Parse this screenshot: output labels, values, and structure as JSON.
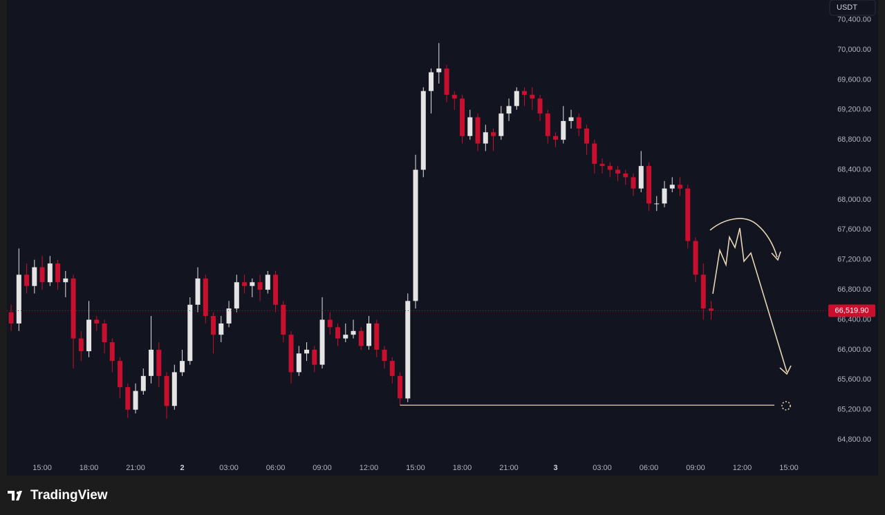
{
  "chart_data": {
    "type": "candlestick",
    "currency": "USDT",
    "brand": "TradingView",
    "up_color": "#e4e4e4",
    "down_color": "#c8102e",
    "x": [
      13,
      13.5,
      14,
      14.5,
      15,
      15.5,
      16,
      16.5,
      17,
      17.5,
      18,
      18.5,
      19,
      19.5,
      20,
      20.5,
      21,
      21.5,
      22,
      22.5,
      23,
      23.5,
      24,
      24.5,
      25,
      25.5,
      26,
      26.5,
      27,
      27.5,
      28,
      28.5,
      29,
      29.5,
      30,
      30.5,
      31,
      31.5,
      32,
      32.5,
      33,
      33.5,
      34,
      34.5,
      35,
      35.5,
      36,
      36.5,
      37,
      37.5,
      38,
      38.5,
      39,
      39.5,
      40,
      40.5,
      41,
      41.5,
      42,
      42.5,
      43,
      43.5,
      44,
      44.5,
      45,
      45.5,
      46,
      46.5,
      47,
      47.5,
      48,
      48.5,
      49,
      49.5,
      50,
      50.5,
      51,
      51.5,
      52,
      52.5,
      53,
      53.5,
      54,
      54.5,
      55,
      55.5,
      56,
      56.5,
      57,
      57.5,
      58
    ],
    "open": [
      66500,
      66350,
      67000,
      66850,
      67100,
      66900,
      67150,
      66900,
      66950,
      66150,
      65980,
      66400,
      66350,
      66100,
      65850,
      65500,
      65200,
      65450,
      65650,
      66000,
      65650,
      65250,
      65700,
      65850,
      66600,
      66950,
      66450,
      66200,
      66350,
      66550,
      66900,
      66850,
      66900,
      66800,
      67000,
      66600,
      66200,
      65700,
      65950,
      66000,
      65800,
      66400,
      66300,
      66150,
      66200,
      66250,
      66050,
      66350,
      66000,
      65850,
      65650,
      65350,
      66650,
      68400,
      69450,
      69700,
      69750,
      69400,
      69350,
      68850,
      69100,
      68750,
      68900,
      68850,
      69150,
      69250,
      69450,
      69400,
      69350,
      69150,
      68850,
      68800,
      69050,
      69100,
      68950,
      68750,
      68480,
      68450,
      68400,
      68350,
      68300,
      68150,
      68450,
      67950,
      67950,
      68150,
      68200,
      68150,
      67450,
      67000,
      66550
    ],
    "high": [
      66600,
      67350,
      67150,
      67200,
      67250,
      67250,
      67200,
      67050,
      67000,
      66250,
      66650,
      66450,
      66400,
      66150,
      65900,
      65550,
      65550,
      65750,
      66450,
      66100,
      65700,
      65800,
      66000,
      66700,
      67100,
      67000,
      66500,
      66450,
      66650,
      67000,
      67000,
      66950,
      67000,
      67050,
      67050,
      66650,
      66250,
      66050,
      66100,
      66050,
      66700,
      66500,
      66350,
      66350,
      66400,
      66300,
      66450,
      66400,
      66050,
      65900,
      65700,
      66750,
      68600,
      69500,
      69750,
      70090,
      69800,
      69450,
      69400,
      69200,
      69150,
      69000,
      68950,
      69250,
      69350,
      69500,
      69500,
      69500,
      69400,
      69200,
      68900,
      69250,
      69200,
      69150,
      69000,
      68800,
      68550,
      68500,
      68450,
      68400,
      68350,
      68650,
      68500,
      68050,
      68250,
      68300,
      68300,
      68200,
      67500,
      67150,
      66650
    ],
    "low": [
      66250,
      66250,
      66750,
      66750,
      66800,
      66850,
      66800,
      66700,
      65750,
      65850,
      65900,
      66250,
      65950,
      65700,
      65350,
      65090,
      65150,
      65400,
      65550,
      65500,
      65080,
      65200,
      65650,
      65800,
      66500,
      66350,
      65950,
      66100,
      66300,
      66500,
      66750,
      66700,
      66650,
      66750,
      66500,
      66100,
      65550,
      65650,
      65850,
      65700,
      65750,
      66200,
      66050,
      66100,
      66150,
      66000,
      66000,
      65900,
      65750,
      65550,
      65260,
      65300,
      66550,
      68300,
      69150,
      69550,
      69300,
      69200,
      68750,
      68800,
      68650,
      68650,
      68650,
      68800,
      69050,
      69200,
      69250,
      69200,
      69050,
      68750,
      68700,
      68750,
      68950,
      68850,
      68600,
      68350,
      68350,
      68300,
      68250,
      68200,
      68050,
      68100,
      67850,
      67850,
      67900,
      68100,
      68050,
      67350,
      66900,
      66400,
      66400
    ],
    "close": [
      66350,
      67000,
      66850,
      67100,
      66900,
      67150,
      66900,
      66950,
      66150,
      65980,
      66400,
      66350,
      66100,
      65850,
      65500,
      65200,
      65450,
      65650,
      66000,
      65650,
      65250,
      65700,
      65850,
      66600,
      66950,
      66450,
      66200,
      66350,
      66550,
      66900,
      66850,
      66900,
      66800,
      67000,
      66600,
      66200,
      65700,
      65950,
      66000,
      65800,
      66400,
      66300,
      66150,
      66200,
      66250,
      66050,
      66350,
      66000,
      65850,
      65650,
      65350,
      66650,
      68400,
      69450,
      69700,
      69750,
      69400,
      69350,
      68850,
      69100,
      68750,
      68900,
      68850,
      69150,
      69250,
      69450,
      69400,
      69350,
      69150,
      68850,
      68800,
      69050,
      69100,
      68950,
      68750,
      68480,
      68450,
      68400,
      68350,
      68300,
      68150,
      68450,
      67950,
      67950,
      68150,
      68200,
      68150,
      67450,
      67000,
      66550,
      66519.9
    ],
    "last_price": {
      "value": 66519.9,
      "label": "66,519.90"
    },
    "hline": {
      "y": 65260,
      "x": [
        38,
        62.07
      ]
    },
    "xlim": [
      12.73,
      65.4
    ],
    "ylim": [
      64321,
      70664
    ],
    "xticks": [
      {
        "value": 15,
        "label": "15:00"
      },
      {
        "value": 18,
        "label": "18:00"
      },
      {
        "value": 21,
        "label": "21:00"
      },
      {
        "value": 24,
        "label": "2"
      },
      {
        "value": 27,
        "label": "03:00"
      },
      {
        "value": 30,
        "label": "06:00"
      },
      {
        "value": 33,
        "label": "09:00"
      },
      {
        "value": 36,
        "label": "12:00"
      },
      {
        "value": 39,
        "label": "15:00"
      },
      {
        "value": 42,
        "label": "18:00"
      },
      {
        "value": 45,
        "label": "21:00"
      },
      {
        "value": 48,
        "label": "3"
      },
      {
        "value": 51,
        "label": "03:00"
      },
      {
        "value": 54,
        "label": "06:00"
      },
      {
        "value": 57,
        "label": "09:00"
      },
      {
        "value": 60,
        "label": "12:00"
      },
      {
        "value": 63,
        "label": "15:00"
      }
    ],
    "yticks": [
      {
        "value": 64800,
        "label": "64,800.00"
      },
      {
        "value": 65200,
        "label": "65,200.00"
      },
      {
        "value": 65600,
        "label": "65,600.00"
      },
      {
        "value": 66000,
        "label": "66,000.00"
      },
      {
        "value": 66400,
        "label": "66,400.00"
      },
      {
        "value": 66800,
        "label": "66,800.00"
      },
      {
        "value": 67200,
        "label": "67,200.00"
      },
      {
        "value": 67600,
        "label": "67,600.00"
      },
      {
        "value": 68000,
        "label": "68,000.00"
      },
      {
        "value": 68400,
        "label": "68,400.00"
      },
      {
        "value": 68800,
        "label": "68,800.00"
      },
      {
        "value": 69200,
        "label": "69,200.00"
      },
      {
        "value": 69600,
        "label": "69,600.00"
      },
      {
        "value": 70000,
        "label": "70,000.00"
      },
      {
        "value": 70400,
        "label": "70,400.00"
      }
    ],
    "grid": false
  }
}
